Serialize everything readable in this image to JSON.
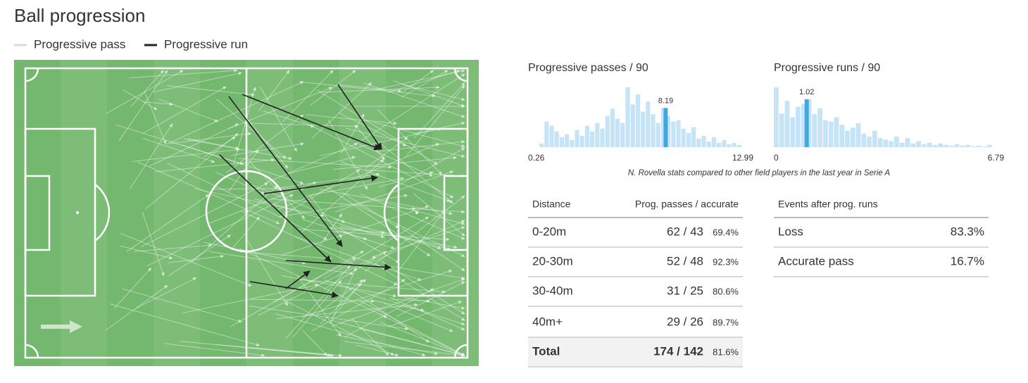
{
  "title": "Ball progression",
  "legend": [
    {
      "label": "Progressive pass",
      "color": "#d9d9d9"
    },
    {
      "label": "Progressive run",
      "color": "#222222"
    }
  ],
  "histograms": [
    {
      "title": "Progressive passes / 90",
      "xlim": [
        0.26,
        12.99
      ],
      "player_value": 8.19,
      "color": "#c6e4f7",
      "highlight_color": "#3fa8e0",
      "values": [
        5,
        36,
        30,
        22,
        14,
        18,
        10,
        24,
        16,
        30,
        22,
        34,
        26,
        44,
        54,
        40,
        34,
        84,
        60,
        74,
        50,
        64,
        46,
        34,
        55,
        44,
        36,
        38,
        26,
        20,
        28,
        12,
        16,
        8,
        14,
        6,
        10,
        4,
        6,
        3
      ]
    },
    {
      "title": "Progressive runs / 90",
      "xlim": [
        0,
        6.79
      ],
      "player_value": 1.02,
      "color": "#c6e4f7",
      "highlight_color": "#3fa8e0",
      "values": [
        80,
        45,
        62,
        40,
        54,
        58,
        64,
        44,
        52,
        36,
        34,
        40,
        30,
        22,
        26,
        32,
        18,
        14,
        22,
        12,
        10,
        8,
        14,
        6,
        12,
        5,
        8,
        4,
        6,
        3,
        5,
        3,
        2,
        4,
        2,
        3,
        1,
        2,
        1,
        3
      ]
    }
  ],
  "note": "N. Rovella stats compared to other field players in the last year in Serie A",
  "passes_table": {
    "headers": [
      "Distance",
      "Prog. passes / accurate"
    ],
    "rows": [
      [
        "0-20m",
        "62 / 43",
        "69.4%"
      ],
      [
        "20-30m",
        "52 / 48",
        "92.3%"
      ],
      [
        "30-40m",
        "31 / 25",
        "80.6%"
      ],
      [
        "40m+",
        "29 / 26",
        "89.7%"
      ]
    ],
    "total": [
      "Total",
      "174 / 142",
      "81.6%"
    ]
  },
  "runs_table": {
    "header": "Events after prog. runs",
    "rows": [
      [
        "Loss",
        "83.3%"
      ],
      [
        "Accurate pass",
        "16.7%"
      ]
    ]
  }
}
